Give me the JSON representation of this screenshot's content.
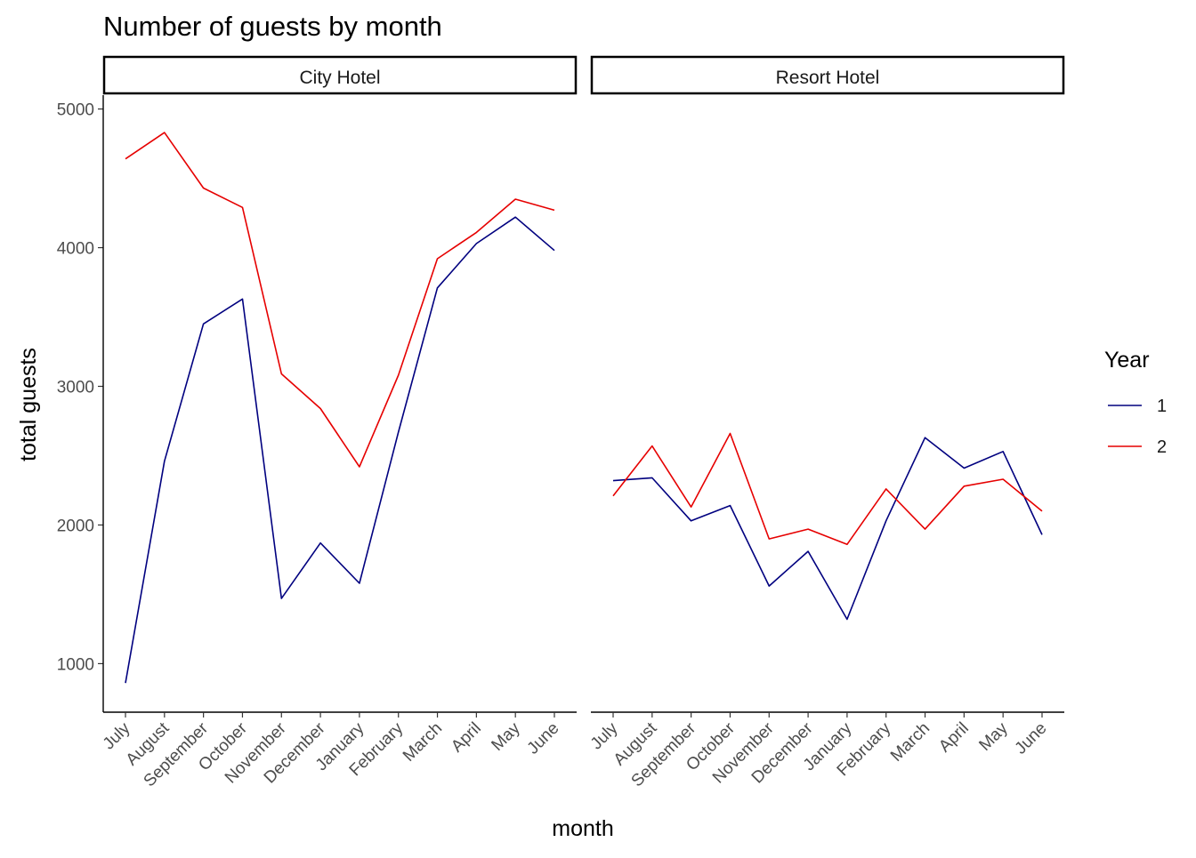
{
  "chart_data": {
    "type": "line",
    "title": "Number of guests by month",
    "xlabel": "month",
    "ylabel": "total guests",
    "yticks": [
      1000,
      2000,
      3000,
      4000,
      5000
    ],
    "ylim": [
      650,
      5100
    ],
    "grid": false,
    "legend": {
      "title": "Year",
      "position": "right",
      "entries": [
        {
          "label": "1",
          "color": "#00007f"
        },
        {
          "label": "2",
          "color": "#e60000"
        }
      ]
    },
    "categories": [
      "July",
      "August",
      "September",
      "October",
      "November",
      "December",
      "January",
      "February",
      "March",
      "April",
      "May",
      "June"
    ],
    "panels": [
      {
        "name": "City Hotel",
        "series": [
          {
            "name": "1",
            "color": "#00007f",
            "values": [
              860,
              2460,
              3450,
              3630,
              1470,
              1870,
              1580,
              2670,
              3710,
              4030,
              4220,
              3980
            ]
          },
          {
            "name": "2",
            "color": "#e60000",
            "values": [
              4640,
              4830,
              4430,
              4290,
              3090,
              2840,
              2420,
              3080,
              3920,
              4110,
              4350,
              4270
            ]
          }
        ]
      },
      {
        "name": "Resort Hotel",
        "series": [
          {
            "name": "1",
            "color": "#00007f",
            "values": [
              2320,
              2340,
              2030,
              2140,
              1560,
              1810,
              1320,
              2030,
              2630,
              2410,
              2530,
              1930
            ]
          },
          {
            "name": "2",
            "color": "#e60000",
            "values": [
              2210,
              2570,
              2130,
              2660,
              1900,
              1970,
              1860,
              2260,
              1970,
              2280,
              2330,
              2100
            ]
          }
        ]
      }
    ]
  }
}
